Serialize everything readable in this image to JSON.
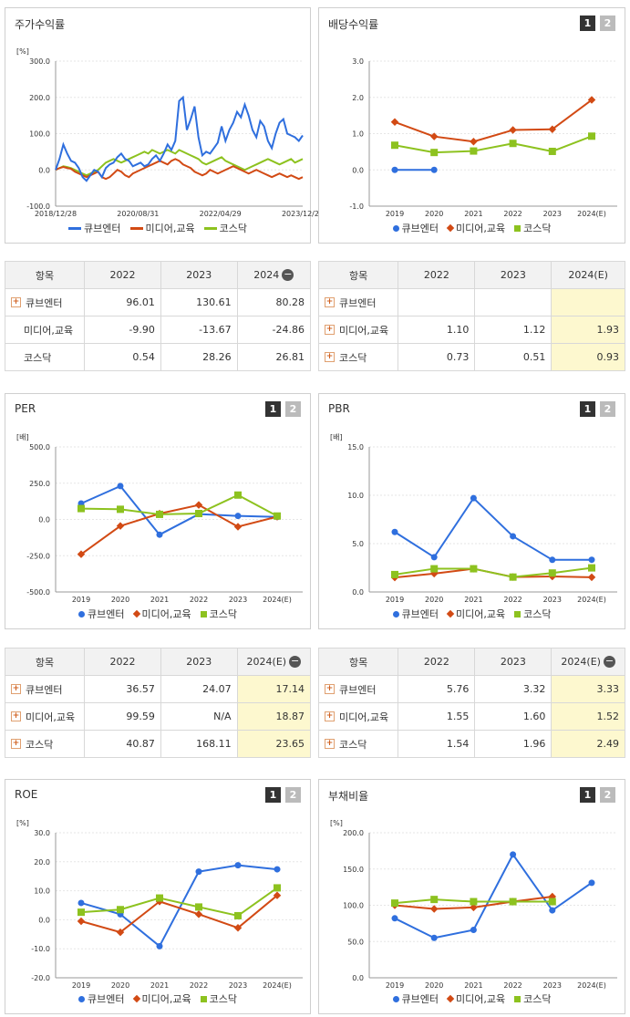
{
  "colors": {
    "cube": "#2f6fde",
    "media": "#d24a14",
    "kosdaq": "#8dc21f"
  },
  "charts": [
    {
      "id": "stock",
      "title": "주가수익률",
      "unit": "[%]",
      "buttons": false,
      "chart_data": {
        "type": "line",
        "yticks": [
          "300.0",
          "200.0",
          "100.0",
          "0.0",
          "-100.0"
        ],
        "ylim": [
          -100,
          300
        ],
        "xticks": [
          "2018/12/28",
          "2020/08/31",
          "2022/04/29",
          "2023/12/28"
        ],
        "series": [
          {
            "name": "큐브엔터",
            "values": [
              0,
              30,
              70,
              45,
              25,
              20,
              5,
              -20,
              -30,
              -15,
              0,
              -5,
              -20,
              5,
              15,
              20,
              35,
              45,
              30,
              25,
              10,
              15,
              20,
              10,
              15,
              30,
              40,
              25,
              45,
              70,
              55,
              80,
              190,
              200,
              110,
              140,
              175,
              90,
              40,
              50,
              45,
              60,
              75,
              120,
              80,
              110,
              130,
              160,
              145,
              180,
              150,
              110,
              90,
              135,
              120,
              80,
              60,
              100,
              130,
              140,
              100,
              95,
              90,
              80,
              95
            ]
          },
          {
            "name": "미디어,교육",
            "values": [
              0,
              5,
              8,
              5,
              3,
              -5,
              -10,
              -15,
              -20,
              -15,
              -10,
              -5,
              -20,
              -25,
              -20,
              -10,
              0,
              -5,
              -15,
              -20,
              -10,
              -5,
              0,
              5,
              10,
              15,
              20,
              25,
              20,
              15,
              25,
              30,
              25,
              15,
              10,
              5,
              -5,
              -10,
              -15,
              -10,
              0,
              -5,
              -10,
              -5,
              0,
              5,
              10,
              5,
              0,
              -5,
              -10,
              -5,
              0,
              -5,
              -10,
              -15,
              -20,
              -15,
              -10,
              -15,
              -20,
              -15,
              -20,
              -25,
              -20
            ]
          },
          {
            "name": "코스닥",
            "values": [
              0,
              5,
              10,
              8,
              5,
              0,
              -5,
              -10,
              -15,
              -10,
              -5,
              0,
              10,
              20,
              25,
              30,
              25,
              20,
              25,
              30,
              35,
              40,
              45,
              50,
              45,
              55,
              50,
              45,
              50,
              55,
              50,
              45,
              55,
              50,
              45,
              40,
              35,
              30,
              20,
              15,
              20,
              25,
              30,
              35,
              25,
              20,
              15,
              10,
              5,
              0,
              5,
              10,
              15,
              20,
              25,
              30,
              25,
              20,
              15,
              20,
              25,
              30,
              20,
              25,
              30
            ]
          }
        ]
      }
    },
    {
      "id": "div",
      "title": "배당수익률",
      "unit": "",
      "buttons": true,
      "chart_data": {
        "type": "line",
        "yticks": [
          "3.0",
          "2.0",
          "1.0",
          "0.0",
          "-1.0"
        ],
        "ylim": [
          -1,
          3
        ],
        "xticks": [
          "2019",
          "2020",
          "2021",
          "2022",
          "2023",
          "2024(E)"
        ],
        "series": [
          {
            "name": "큐브엔터",
            "values": [
              0.0,
              0.0,
              null,
              null,
              null,
              null
            ]
          },
          {
            "name": "미디어,교육",
            "values": [
              1.32,
              0.92,
              0.78,
              1.1,
              1.12,
              1.93
            ]
          },
          {
            "name": "코스닥",
            "values": [
              0.68,
              0.48,
              0.52,
              0.73,
              0.51,
              0.93
            ]
          }
        ]
      }
    },
    {
      "id": "per",
      "title": "PER",
      "unit": "[배]",
      "buttons": true,
      "chart_data": {
        "type": "line",
        "yticks": [
          "500.0",
          "250.0",
          "0.0",
          "-250.0",
          "-500.0"
        ],
        "ylim": [
          -500,
          500
        ],
        "xticks": [
          "2019",
          "2020",
          "2021",
          "2022",
          "2023",
          "2024(E)"
        ],
        "series": [
          {
            "name": "큐브엔터",
            "values": [
              110,
              230,
              -105,
              36.57,
              24.07,
              17.14
            ]
          },
          {
            "name": "미디어,교육",
            "values": [
              -240,
              -45,
              40,
              99.59,
              -50,
              18.87
            ]
          },
          {
            "name": "코스닥",
            "values": [
              75,
              70,
              35,
              40.87,
              168.11,
              23.65
            ]
          }
        ]
      }
    },
    {
      "id": "pbr",
      "title": "PBR",
      "unit": "[배]",
      "buttons": true,
      "chart_data": {
        "type": "line",
        "yticks": [
          "15.0",
          "10.0",
          "5.0",
          "0.0"
        ],
        "ylim": [
          0,
          15
        ],
        "xticks": [
          "2019",
          "2020",
          "2021",
          "2022",
          "2023",
          "2024(E)"
        ],
        "series": [
          {
            "name": "큐브엔터",
            "values": [
              6.2,
              3.6,
              9.7,
              5.76,
              3.32,
              3.33
            ]
          },
          {
            "name": "미디어,교육",
            "values": [
              1.5,
              1.9,
              2.4,
              1.55,
              1.6,
              1.52
            ]
          },
          {
            "name": "코스닥",
            "values": [
              1.8,
              2.4,
              2.4,
              1.54,
              1.96,
              2.49
            ]
          }
        ]
      }
    },
    {
      "id": "roe",
      "title": "ROE",
      "unit": "[%]",
      "buttons": true,
      "chart_data": {
        "type": "line",
        "yticks": [
          "30.0",
          "20.0",
          "10.0",
          "0.0",
          "-10.0",
          "-20.0"
        ],
        "ylim": [
          -20,
          30
        ],
        "xticks": [
          "2019",
          "2020",
          "2021",
          "2022",
          "2023",
          "2024(E)"
        ],
        "series": [
          {
            "name": "큐브엔터",
            "values": [
              5.8,
              1.9,
              -9.1,
              16.6,
              18.8,
              17.4
            ]
          },
          {
            "name": "미디어,교육",
            "values": [
              -0.5,
              -4.3,
              6.3,
              1.9,
              -2.8,
              8.4
            ]
          },
          {
            "name": "코스닥",
            "values": [
              2.6,
              3.5,
              7.5,
              4.4,
              1.4,
              11.0
            ]
          }
        ]
      }
    },
    {
      "id": "debt",
      "title": "부채비율",
      "unit": "[%]",
      "buttons": true,
      "chart_data": {
        "type": "line",
        "yticks": [
          "200.0",
          "150.0",
          "100.0",
          "50.0",
          "0.0"
        ],
        "ylim": [
          0,
          200
        ],
        "xticks": [
          "2019",
          "2020",
          "2021",
          "2022",
          "2023",
          "2024(E)"
        ],
        "series": [
          {
            "name": "큐브엔터",
            "values": [
              82,
              55,
              66,
              170,
              93,
              131
            ]
          },
          {
            "name": "미디어,교육",
            "values": [
              100,
              95,
              97,
              105,
              112,
              null
            ]
          },
          {
            "name": "코스닥",
            "values": [
              103,
              108,
              105,
              105,
              105,
              null
            ]
          }
        ]
      }
    }
  ],
  "tables": [
    {
      "id": "t_stock",
      "head": [
        "항목",
        "2022",
        "2023",
        "2024"
      ],
      "minus": true,
      "hl": false,
      "rows": [
        {
          "name": "큐브엔터",
          "plus": true,
          "v": [
            "96.01",
            "130.61",
            "80.28"
          ]
        },
        {
          "name": "미디어,교육",
          "plus": false,
          "v": [
            "-9.90",
            "-13.67",
            "-24.86"
          ]
        },
        {
          "name": "코스닥",
          "plus": false,
          "v": [
            "0.54",
            "28.26",
            "26.81"
          ]
        }
      ]
    },
    {
      "id": "t_div",
      "head": [
        "항목",
        "2022",
        "2023",
        "2024(E)"
      ],
      "minus": false,
      "hl": true,
      "rows": [
        {
          "name": "큐브엔터",
          "plus": true,
          "v": [
            "",
            "",
            ""
          ]
        },
        {
          "name": "미디어,교육",
          "plus": true,
          "v": [
            "1.10",
            "1.12",
            "1.93"
          ]
        },
        {
          "name": "코스닥",
          "plus": true,
          "v": [
            "0.73",
            "0.51",
            "0.93"
          ]
        }
      ]
    },
    {
      "id": "t_per",
      "head": [
        "항목",
        "2022",
        "2023",
        "2024(E)"
      ],
      "minus": true,
      "hl": true,
      "rows": [
        {
          "name": "큐브엔터",
          "plus": true,
          "v": [
            "36.57",
            "24.07",
            "17.14"
          ]
        },
        {
          "name": "미디어,교육",
          "plus": true,
          "v": [
            "99.59",
            "N/A",
            "18.87"
          ]
        },
        {
          "name": "코스닥",
          "plus": true,
          "v": [
            "40.87",
            "168.11",
            "23.65"
          ]
        }
      ]
    },
    {
      "id": "t_pbr",
      "head": [
        "항목",
        "2022",
        "2023",
        "2024(E)"
      ],
      "minus": true,
      "hl": true,
      "rows": [
        {
          "name": "큐브엔터",
          "plus": true,
          "v": [
            "5.76",
            "3.32",
            "3.33"
          ]
        },
        {
          "name": "미디어,교육",
          "plus": true,
          "v": [
            "1.55",
            "1.60",
            "1.52"
          ]
        },
        {
          "name": "코스닥",
          "plus": true,
          "v": [
            "1.54",
            "1.96",
            "2.49"
          ]
        }
      ]
    }
  ],
  "buttons": {
    "b1": "1",
    "b2": "2"
  },
  "minus_symbol": "−",
  "plus_symbol": "+"
}
